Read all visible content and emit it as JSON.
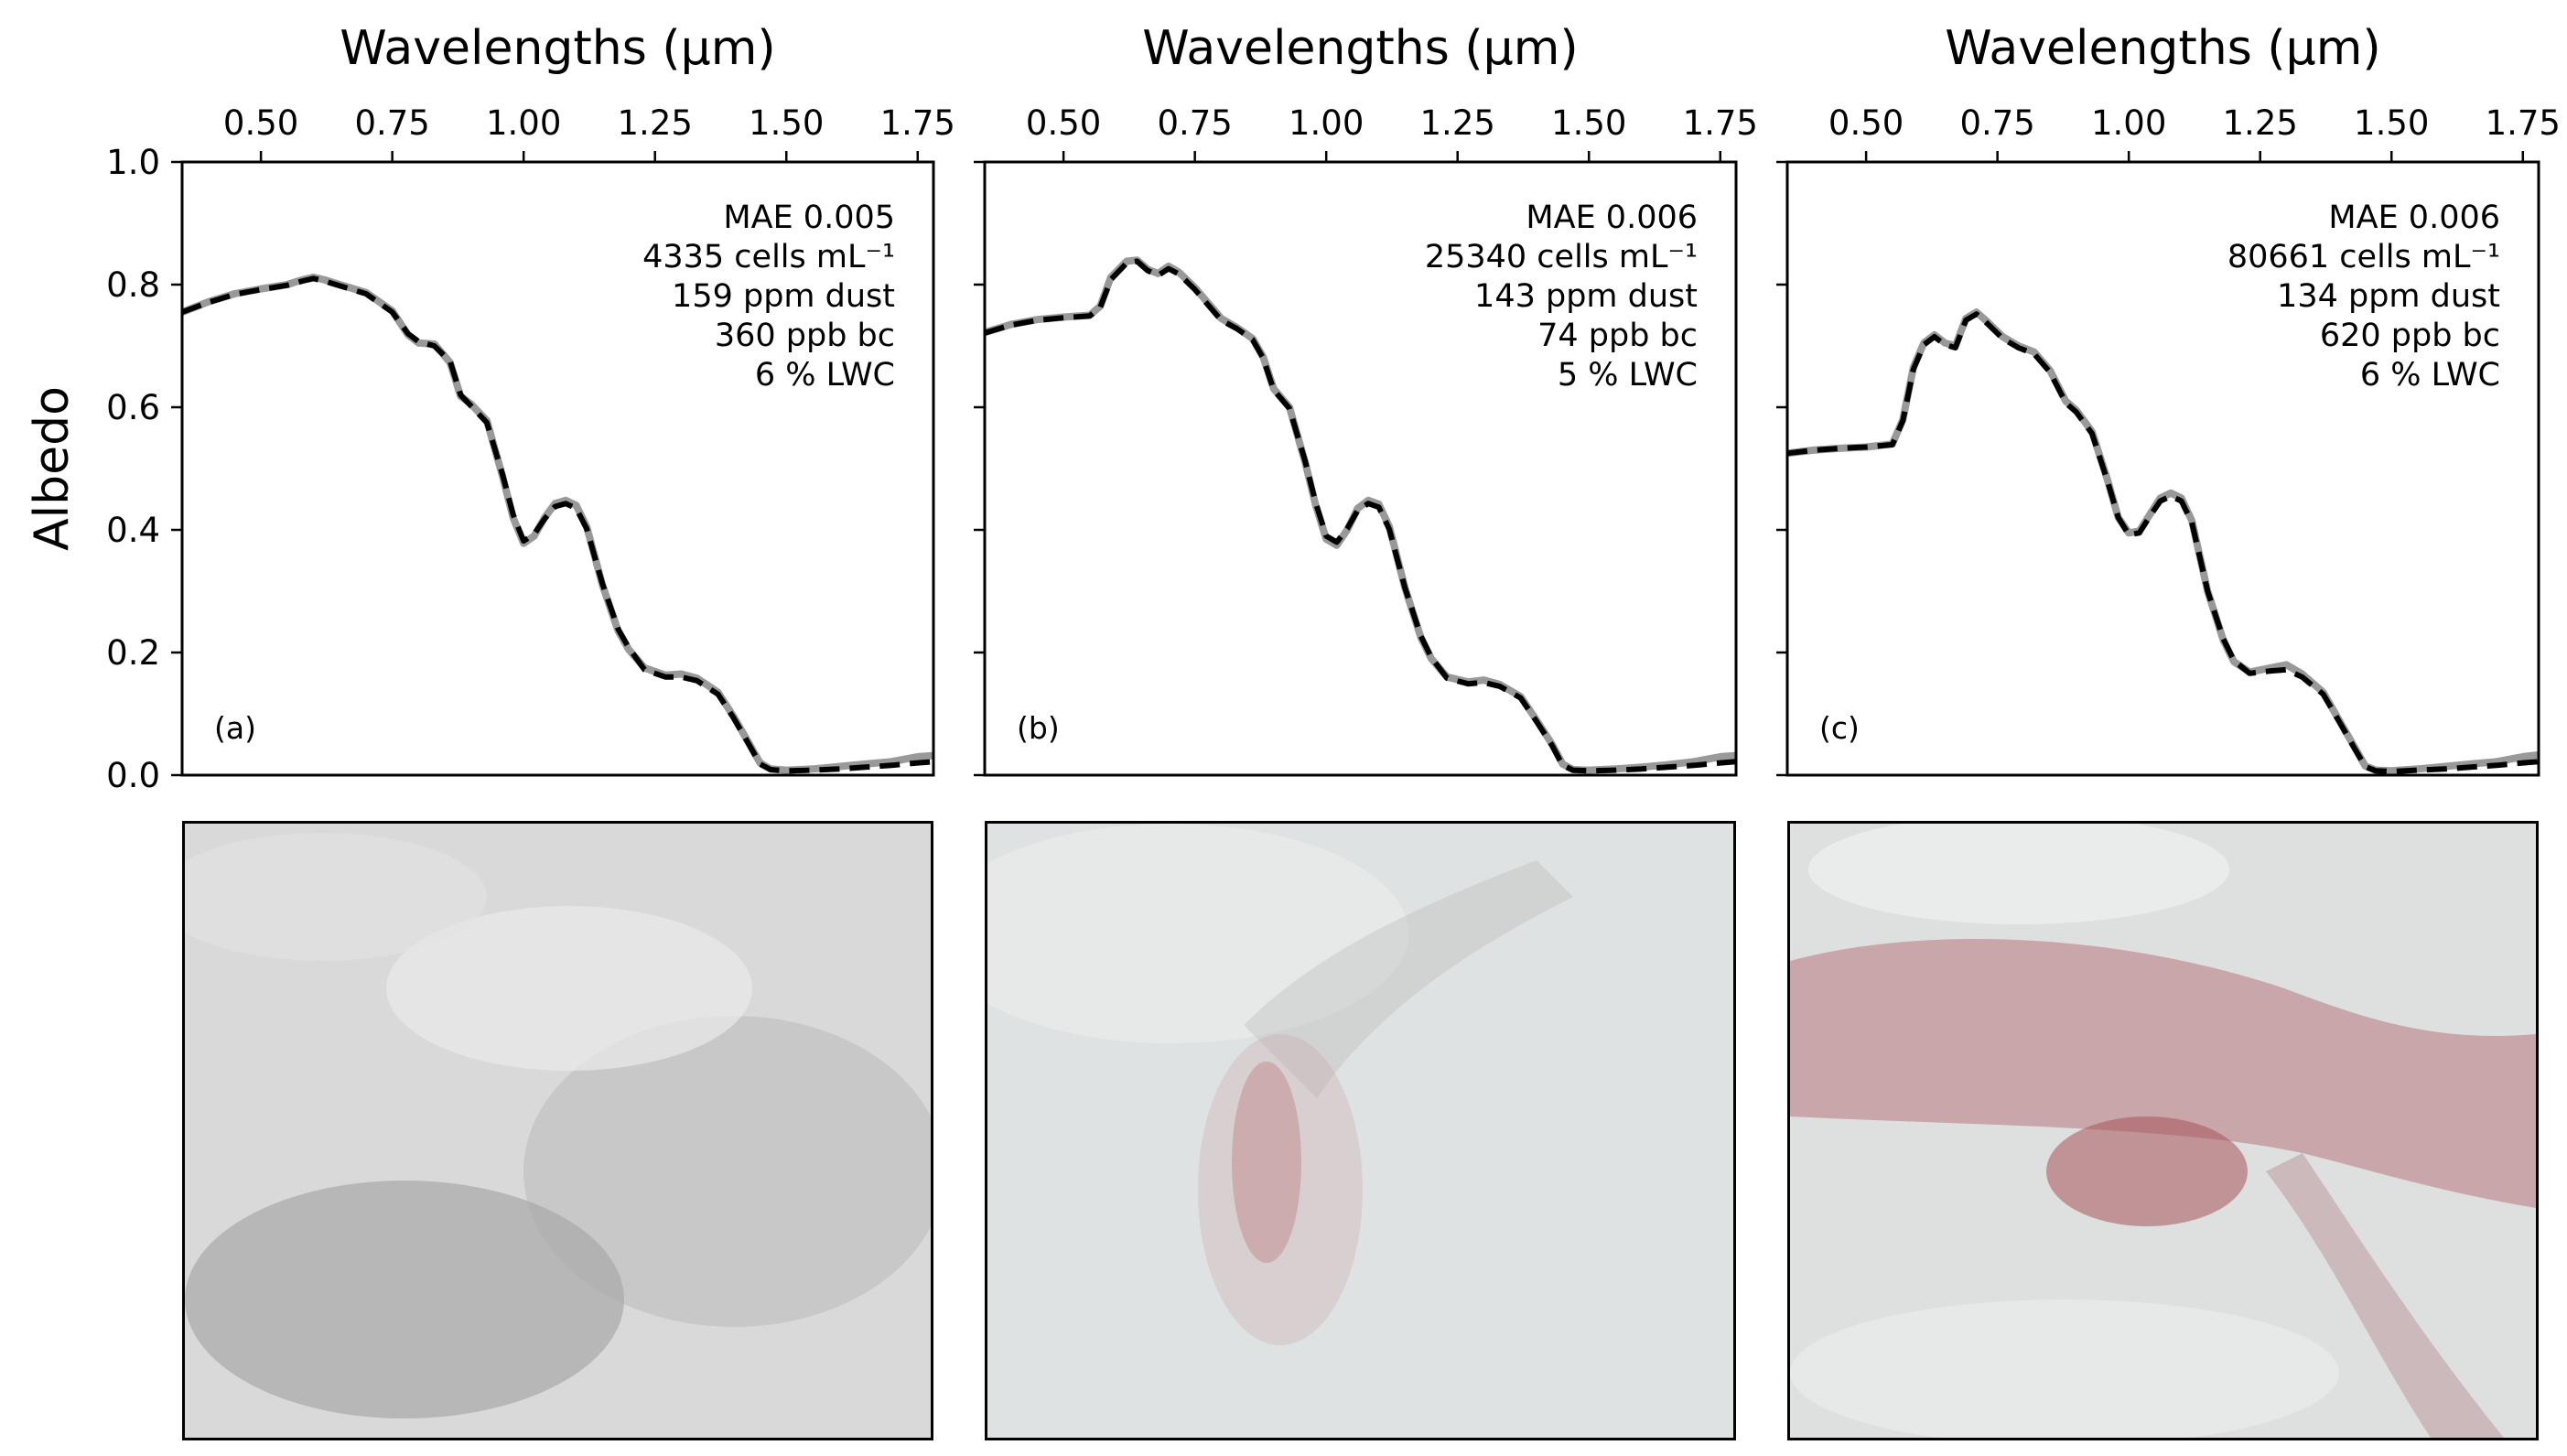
{
  "chart_data": [
    {
      "type": "line",
      "panel_label": "(a)",
      "xlabel": "Wavelengths (µm)",
      "ylabel": "Albedo",
      "xlim": [
        0.35,
        1.78
      ],
      "ylim": [
        0.0,
        1.0
      ],
      "xticks": [
        0.5,
        0.75,
        1.0,
        1.25,
        1.5,
        1.75
      ],
      "xtick_labels": [
        "0.50",
        "0.75",
        "1.00",
        "1.25",
        "1.50",
        "1.75"
      ],
      "yticks": [
        0.0,
        0.2,
        0.4,
        0.6,
        0.8,
        1.0
      ],
      "ytick_labels": [
        "0.0",
        "0.2",
        "0.4",
        "0.6",
        "0.8",
        "1.0"
      ],
      "x_axis_position": "top",
      "grid": false,
      "annotations": [
        "MAE 0.005",
        "4335 cells mL⁻¹",
        "159 ppm dust",
        "360 ppb bc",
        "6 % LWC"
      ],
      "series": [
        {
          "style": "solid",
          "color": "#999999",
          "x": [
            0.35,
            0.4,
            0.45,
            0.5,
            0.55,
            0.58,
            0.6,
            0.62,
            0.65,
            0.7,
            0.75,
            0.78,
            0.8,
            0.83,
            0.86,
            0.88,
            0.9,
            0.93,
            0.96,
            0.98,
            1.0,
            1.02,
            1.04,
            1.06,
            1.08,
            1.1,
            1.12,
            1.15,
            1.18,
            1.2,
            1.23,
            1.27,
            1.3,
            1.33,
            1.37,
            1.4,
            1.43,
            1.45,
            1.47,
            1.5,
            1.55,
            1.6,
            1.65,
            1.7,
            1.75,
            1.78
          ],
          "y": [
            0.755,
            0.772,
            0.785,
            0.793,
            0.8,
            0.808,
            0.812,
            0.808,
            0.8,
            0.787,
            0.757,
            0.718,
            0.705,
            0.703,
            0.673,
            0.618,
            0.605,
            0.578,
            0.487,
            0.42,
            0.378,
            0.39,
            0.42,
            0.443,
            0.448,
            0.44,
            0.405,
            0.31,
            0.235,
            0.205,
            0.175,
            0.163,
            0.165,
            0.158,
            0.135,
            0.095,
            0.05,
            0.02,
            0.01,
            0.008,
            0.01,
            0.014,
            0.018,
            0.022,
            0.03,
            0.032
          ]
        },
        {
          "style": "dashed",
          "color": "#000000",
          "x": [
            0.35,
            0.4,
            0.45,
            0.5,
            0.55,
            0.58,
            0.6,
            0.62,
            0.65,
            0.7,
            0.75,
            0.78,
            0.8,
            0.83,
            0.86,
            0.88,
            0.9,
            0.93,
            0.96,
            0.98,
            1.0,
            1.02,
            1.04,
            1.06,
            1.08,
            1.1,
            1.12,
            1.15,
            1.18,
            1.2,
            1.23,
            1.27,
            1.3,
            1.33,
            1.37,
            1.4,
            1.43,
            1.45,
            1.47,
            1.5,
            1.55,
            1.6,
            1.65,
            1.7,
            1.75,
            1.78
          ],
          "y": [
            0.755,
            0.771,
            0.784,
            0.792,
            0.799,
            0.806,
            0.81,
            0.806,
            0.798,
            0.785,
            0.755,
            0.72,
            0.707,
            0.7,
            0.675,
            0.62,
            0.602,
            0.575,
            0.49,
            0.425,
            0.382,
            0.393,
            0.418,
            0.438,
            0.443,
            0.435,
            0.402,
            0.312,
            0.238,
            0.208,
            0.172,
            0.16,
            0.16,
            0.154,
            0.132,
            0.093,
            0.048,
            0.018,
            0.009,
            0.007,
            0.008,
            0.01,
            0.013,
            0.016,
            0.02,
            0.022
          ]
        }
      ]
    },
    {
      "type": "line",
      "panel_label": "(b)",
      "xlabel": "Wavelengths (µm)",
      "xlim": [
        0.35,
        1.78
      ],
      "ylim": [
        0.0,
        1.0
      ],
      "xticks": [
        0.5,
        0.75,
        1.0,
        1.25,
        1.5,
        1.75
      ],
      "xtick_labels": [
        "0.50",
        "0.75",
        "1.00",
        "1.25",
        "1.50",
        "1.75"
      ],
      "yticks": [
        0.0,
        0.2,
        0.4,
        0.6,
        0.8,
        1.0
      ],
      "x_axis_position": "top",
      "grid": false,
      "annotations": [
        "MAE 0.006",
        "25340 cells mL⁻¹",
        "143 ppm dust",
        "74 ppb bc",
        "5 % LWC"
      ],
      "series": [
        {
          "style": "solid",
          "color": "#999999",
          "x": [
            0.35,
            0.4,
            0.45,
            0.5,
            0.55,
            0.57,
            0.59,
            0.62,
            0.64,
            0.66,
            0.68,
            0.7,
            0.72,
            0.75,
            0.78,
            0.8,
            0.83,
            0.86,
            0.88,
            0.9,
            0.93,
            0.96,
            0.98,
            1.0,
            1.02,
            1.04,
            1.06,
            1.08,
            1.1,
            1.12,
            1.15,
            1.18,
            1.2,
            1.23,
            1.27,
            1.3,
            1.33,
            1.37,
            1.4,
            1.43,
            1.45,
            1.47,
            1.5,
            1.55,
            1.6,
            1.65,
            1.7,
            1.75,
            1.78
          ],
          "y": [
            0.722,
            0.735,
            0.743,
            0.747,
            0.75,
            0.765,
            0.812,
            0.838,
            0.84,
            0.825,
            0.818,
            0.83,
            0.82,
            0.795,
            0.765,
            0.745,
            0.73,
            0.712,
            0.682,
            0.63,
            0.6,
            0.51,
            0.44,
            0.385,
            0.375,
            0.4,
            0.435,
            0.448,
            0.442,
            0.405,
            0.305,
            0.225,
            0.19,
            0.16,
            0.152,
            0.155,
            0.148,
            0.128,
            0.09,
            0.05,
            0.018,
            0.009,
            0.008,
            0.01,
            0.013,
            0.017,
            0.022,
            0.03,
            0.032
          ]
        },
        {
          "style": "dashed",
          "color": "#000000",
          "x": [
            0.35,
            0.4,
            0.45,
            0.5,
            0.55,
            0.57,
            0.59,
            0.62,
            0.64,
            0.66,
            0.68,
            0.7,
            0.72,
            0.75,
            0.78,
            0.8,
            0.83,
            0.86,
            0.88,
            0.9,
            0.93,
            0.96,
            0.98,
            1.0,
            1.02,
            1.04,
            1.06,
            1.08,
            1.1,
            1.12,
            1.15,
            1.18,
            1.2,
            1.23,
            1.27,
            1.3,
            1.33,
            1.37,
            1.4,
            1.43,
            1.45,
            1.47,
            1.5,
            1.55,
            1.6,
            1.65,
            1.7,
            1.75,
            1.78
          ],
          "y": [
            0.721,
            0.734,
            0.742,
            0.746,
            0.749,
            0.763,
            0.808,
            0.835,
            0.838,
            0.823,
            0.815,
            0.826,
            0.817,
            0.792,
            0.762,
            0.742,
            0.728,
            0.71,
            0.68,
            0.628,
            0.598,
            0.512,
            0.444,
            0.39,
            0.38,
            0.402,
            0.432,
            0.443,
            0.437,
            0.401,
            0.305,
            0.227,
            0.192,
            0.158,
            0.149,
            0.151,
            0.145,
            0.126,
            0.088,
            0.048,
            0.016,
            0.008,
            0.007,
            0.008,
            0.01,
            0.013,
            0.016,
            0.02,
            0.022
          ]
        }
      ]
    },
    {
      "type": "line",
      "panel_label": "(c)",
      "xlabel": "Wavelengths (µm)",
      "xlim": [
        0.35,
        1.78
      ],
      "ylim": [
        0.0,
        1.0
      ],
      "xticks": [
        0.5,
        0.75,
        1.0,
        1.25,
        1.5,
        1.75
      ],
      "xtick_labels": [
        "0.50",
        "0.75",
        "1.00",
        "1.25",
        "1.50",
        "1.75"
      ],
      "yticks": [
        0.0,
        0.2,
        0.4,
        0.6,
        0.8,
        1.0
      ],
      "x_axis_position": "top",
      "grid": false,
      "annotations": [
        "MAE 0.006",
        "80661 cells mL⁻¹",
        "134 ppm dust",
        "620 ppb bc",
        "6 % LWC"
      ],
      "series": [
        {
          "style": "solid",
          "color": "#999999",
          "x": [
            0.35,
            0.4,
            0.45,
            0.5,
            0.55,
            0.57,
            0.59,
            0.61,
            0.63,
            0.65,
            0.67,
            0.69,
            0.71,
            0.73,
            0.76,
            0.79,
            0.82,
            0.85,
            0.88,
            0.9,
            0.93,
            0.96,
            0.98,
            1.0,
            1.02,
            1.04,
            1.06,
            1.08,
            1.1,
            1.12,
            1.15,
            1.18,
            1.2,
            1.23,
            1.27,
            1.3,
            1.33,
            1.37,
            1.4,
            1.43,
            1.45,
            1.47,
            1.5,
            1.55,
            1.6,
            1.65,
            1.7,
            1.75,
            1.78
          ],
          "y": [
            0.525,
            0.53,
            0.533,
            0.535,
            0.54,
            0.58,
            0.665,
            0.705,
            0.718,
            0.705,
            0.7,
            0.745,
            0.755,
            0.74,
            0.715,
            0.7,
            0.69,
            0.66,
            0.61,
            0.595,
            0.56,
            0.48,
            0.42,
            0.395,
            0.398,
            0.425,
            0.452,
            0.46,
            0.452,
            0.415,
            0.3,
            0.22,
            0.185,
            0.168,
            0.175,
            0.18,
            0.165,
            0.135,
            0.09,
            0.045,
            0.015,
            0.008,
            0.007,
            0.01,
            0.014,
            0.018,
            0.022,
            0.03,
            0.033
          ]
        },
        {
          "style": "dashed",
          "color": "#000000",
          "x": [
            0.35,
            0.4,
            0.45,
            0.5,
            0.55,
            0.57,
            0.59,
            0.61,
            0.63,
            0.65,
            0.67,
            0.69,
            0.71,
            0.73,
            0.76,
            0.79,
            0.82,
            0.85,
            0.88,
            0.9,
            0.93,
            0.96,
            0.98,
            1.0,
            1.02,
            1.04,
            1.06,
            1.08,
            1.1,
            1.12,
            1.15,
            1.18,
            1.2,
            1.23,
            1.27,
            1.3,
            1.33,
            1.37,
            1.4,
            1.43,
            1.45,
            1.47,
            1.5,
            1.55,
            1.6,
            1.65,
            1.7,
            1.75,
            1.78
          ],
          "y": [
            0.525,
            0.53,
            0.533,
            0.535,
            0.539,
            0.578,
            0.662,
            0.702,
            0.715,
            0.702,
            0.697,
            0.742,
            0.752,
            0.737,
            0.712,
            0.697,
            0.687,
            0.657,
            0.607,
            0.592,
            0.557,
            0.478,
            0.42,
            0.392,
            0.395,
            0.422,
            0.447,
            0.455,
            0.447,
            0.412,
            0.3,
            0.222,
            0.187,
            0.166,
            0.17,
            0.172,
            0.16,
            0.132,
            0.088,
            0.043,
            0.014,
            0.007,
            0.006,
            0.008,
            0.01,
            0.013,
            0.016,
            0.02,
            0.022
          ]
        }
      ]
    }
  ],
  "photos": [
    {
      "panel": "(a)",
      "background": "#d9d9d9",
      "tint": "#8f8f8f",
      "tint_opacity": 0.55
    },
    {
      "panel": "(b)",
      "background": "#dfe2e2",
      "tint": "#c2888a",
      "tint_opacity": 0.5
    },
    {
      "panel": "(c)",
      "background": "#dee0e0",
      "tint": "#a85459",
      "tint_opacity": 0.55
    }
  ]
}
